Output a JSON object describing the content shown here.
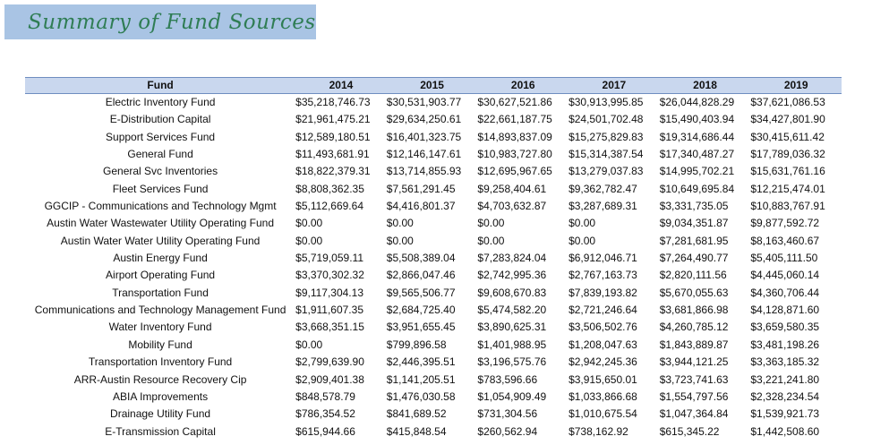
{
  "title": "Summary of Fund Sources",
  "table": {
    "columns": [
      "Fund",
      "2014",
      "2015",
      "2016",
      "2017",
      "2018",
      "2019"
    ],
    "rows": [
      [
        "Electric Inventory Fund",
        "$35,218,746.73",
        "$30,531,903.77",
        "$30,627,521.86",
        "$30,913,995.85",
        "$26,044,828.29",
        "$37,621,086.53"
      ],
      [
        "E-Distribution Capital",
        "$21,961,475.21",
        "$29,634,250.61",
        "$22,661,187.75",
        "$24,501,702.48",
        "$15,490,403.94",
        "$34,427,801.90"
      ],
      [
        "Support Services Fund",
        "$12,589,180.51",
        "$16,401,323.75",
        "$14,893,837.09",
        "$15,275,829.83",
        "$19,314,686.44",
        "$30,415,611.42"
      ],
      [
        "General Fund",
        "$11,493,681.91",
        "$12,146,147.61",
        "$10,983,727.80",
        "$15,314,387.54",
        "$17,340,487.27",
        "$17,789,036.32"
      ],
      [
        "General Svc Inventories",
        "$18,822,379.31",
        "$13,714,855.93",
        "$12,695,967.65",
        "$13,279,037.83",
        "$14,995,702.21",
        "$15,631,761.16"
      ],
      [
        "Fleet Services Fund",
        "$8,808,362.35",
        "$7,561,291.45",
        "$9,258,404.61",
        "$9,362,782.47",
        "$10,649,695.84",
        "$12,215,474.01"
      ],
      [
        "GGCIP - Communications and Technology Mgmt",
        "$5,112,669.64",
        "$4,416,801.37",
        "$4,703,632.87",
        "$3,287,689.31",
        "$3,331,735.05",
        "$10,883,767.91"
      ],
      [
        "Austin Water Wastewater Utility Operating Fund",
        "$0.00",
        "$0.00",
        "$0.00",
        "$0.00",
        "$9,034,351.87",
        "$9,877,592.72"
      ],
      [
        "Austin Water Water Utility Operating Fund",
        "$0.00",
        "$0.00",
        "$0.00",
        "$0.00",
        "$7,281,681.95",
        "$8,163,460.67"
      ],
      [
        "Austin Energy Fund",
        "$5,719,059.11",
        "$5,508,389.04",
        "$7,283,824.04",
        "$6,912,046.71",
        "$7,264,490.77",
        "$5,405,111.50"
      ],
      [
        "Airport Operating Fund",
        "$3,370,302.32",
        "$2,866,047.46",
        "$2,742,995.36",
        "$2,767,163.73",
        "$2,820,111.56",
        "$4,445,060.14"
      ],
      [
        "Transportation Fund",
        "$9,117,304.13",
        "$9,565,506.77",
        "$9,608,670.83",
        "$7,839,193.82",
        "$5,670,055.63",
        "$4,360,706.44"
      ],
      [
        "Communications and Technology Management Fund",
        "$1,911,607.35",
        "$2,684,725.40",
        "$5,474,582.20",
        "$2,721,246.64",
        "$3,681,866.98",
        "$4,128,871.60"
      ],
      [
        "Water Inventory Fund",
        "$3,668,351.15",
        "$3,951,655.45",
        "$3,890,625.31",
        "$3,506,502.76",
        "$4,260,785.12",
        "$3,659,580.35"
      ],
      [
        "Mobility Fund",
        "$0.00",
        "$799,896.58",
        "$1,401,988.95",
        "$1,208,047.63",
        "$1,843,889.87",
        "$3,481,198.26"
      ],
      [
        "Transportation Inventory Fund",
        "$2,799,639.90",
        "$2,446,395.51",
        "$3,196,575.76",
        "$2,942,245.36",
        "$3,944,121.25",
        "$3,363,185.32"
      ],
      [
        "ARR-Austin Resource Recovery Cip",
        "$2,909,401.38",
        "$1,141,205.51",
        "$783,596.66",
        "$3,915,650.01",
        "$3,723,741.63",
        "$3,221,241.80"
      ],
      [
        "ABIA Improvements",
        "$848,578.79",
        "$1,476,030.58",
        "$1,054,909.49",
        "$1,033,866.68",
        "$1,554,797.56",
        "$2,328,234.54"
      ],
      [
        "Drainage Utility Fund",
        "$786,354.52",
        "$841,689.52",
        "$731,304.56",
        "$1,010,675.54",
        "$1,047,364.84",
        "$1,539,921.73"
      ],
      [
        "E-Transmission Capital",
        "$615,944.66",
        "$415,848.54",
        "$260,562.94",
        "$738,162.92",
        "$615,345.22",
        "$1,442,508.60"
      ]
    ]
  }
}
